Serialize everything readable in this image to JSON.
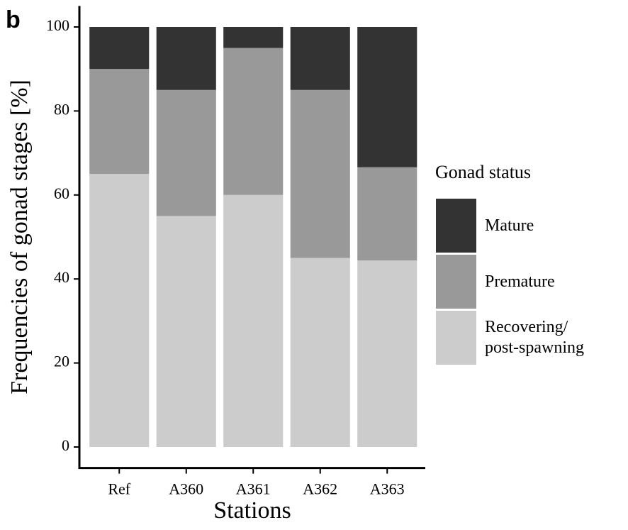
{
  "panel_label": "b",
  "chart_data": {
    "type": "stacked_bar",
    "xlabel": "Stations",
    "ylabel": "Frequencies of gonad stages [%]",
    "legend_title": "Gonad status",
    "categories": [
      "Ref",
      "A360",
      "A361",
      "A362",
      "A363"
    ],
    "series": [
      {
        "name": "Recovering/\npost-spawning",
        "color": "#cccccc",
        "values": [
          65,
          55,
          60,
          45,
          44.4
        ]
      },
      {
        "name": "Premature",
        "color": "#999999",
        "values": [
          25,
          30,
          35,
          40,
          22.2
        ]
      },
      {
        "name": "Mature",
        "color": "#333333",
        "values": [
          10,
          15,
          5,
          15,
          33.4
        ]
      }
    ],
    "ylim": [
      -5,
      105
    ],
    "yticks": [
      0,
      20,
      40,
      60,
      80,
      100
    ],
    "legend": "right"
  }
}
